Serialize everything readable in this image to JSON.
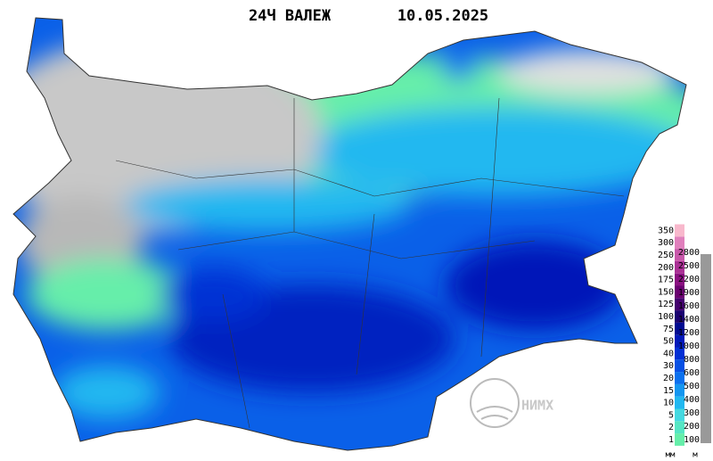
{
  "header": {
    "title": "24Ч ВАЛЕЖ",
    "date": "10.05.2025"
  },
  "legend": {
    "precipitation": {
      "unit": "мм",
      "levels": [
        {
          "label": "1",
          "color": "#66eeaa"
        },
        {
          "label": "2",
          "color": "#55e6c4"
        },
        {
          "label": "5",
          "color": "#44d8e0"
        },
        {
          "label": "10",
          "color": "#22b8f0"
        },
        {
          "label": "15",
          "color": "#1496f0"
        },
        {
          "label": "20",
          "color": "#0a70ee"
        },
        {
          "label": "30",
          "color": "#0650e4"
        },
        {
          "label": "40",
          "color": "#0330d4"
        },
        {
          "label": "50",
          "color": "#0018b8"
        },
        {
          "label": "75",
          "color": "#000a90"
        },
        {
          "label": "100",
          "color": "#1a0070"
        },
        {
          "label": "125",
          "color": "#44006e"
        },
        {
          "label": "150",
          "color": "#6a0070"
        },
        {
          "label": "175",
          "color": "#8a1080"
        },
        {
          "label": "200",
          "color": "#aa3094"
        },
        {
          "label": "250",
          "color": "#c858aa"
        },
        {
          "label": "300",
          "color": "#e080bc"
        },
        {
          "label": "350",
          "color": "#f8b8cc"
        }
      ]
    },
    "elevation": {
      "unit": "м",
      "levels": [
        "100",
        "200",
        "300",
        "400",
        "500",
        "600",
        "800",
        "1000",
        "1200",
        "1400",
        "1600",
        "1900",
        "2200",
        "2500",
        "2800"
      ]
    }
  },
  "logo": {
    "text": "НИМХ"
  }
}
